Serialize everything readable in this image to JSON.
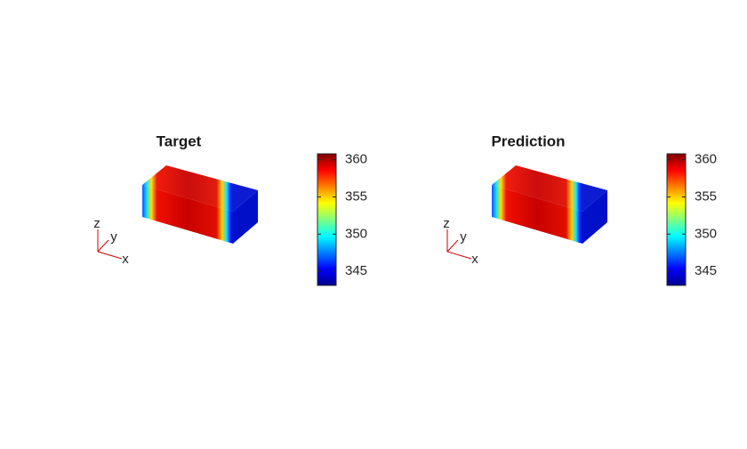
{
  "chart_data": [
    {
      "type": "volume3d",
      "title": "Target",
      "colormap": "jet",
      "clim": [
        343.1,
        360.8
      ],
      "cticks": [
        345,
        350,
        355,
        360
      ],
      "axis_labels": {
        "x": "x",
        "y": "y",
        "z": "z"
      }
    },
    {
      "type": "volume3d",
      "title": "Prediction",
      "colormap": "jet",
      "clim": [
        343.1,
        360.8
      ],
      "cticks": [
        345,
        350,
        355,
        360
      ],
      "axis_labels": {
        "x": "x",
        "y": "y",
        "z": "z"
      }
    }
  ]
}
